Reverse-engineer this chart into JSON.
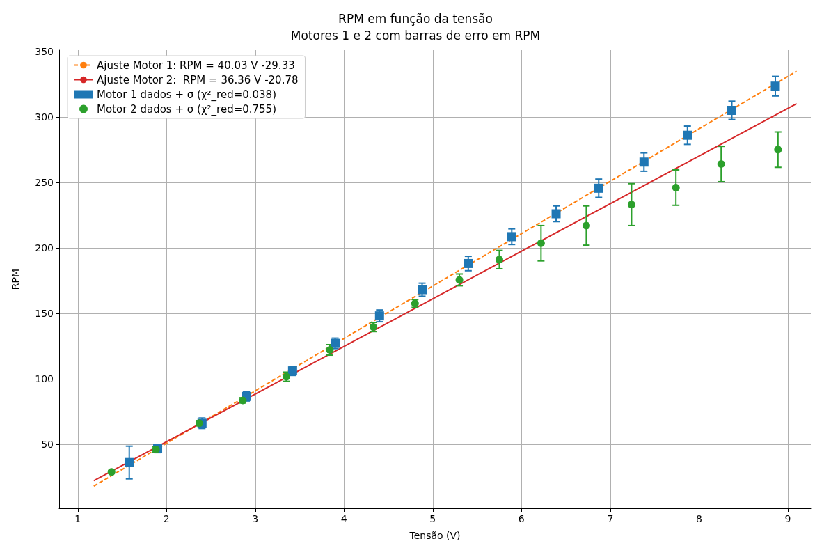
{
  "chart_data": {
    "type": "scatter",
    "title": "RPM em função da tensão",
    "subtitle": "Motores 1 e 2 com barras de erro em RPM",
    "xlabel": "Tensão (V)",
    "ylabel": "RPM",
    "xlim": [
      0.79,
      9.26
    ],
    "xticks": [
      1,
      2,
      3,
      4,
      5,
      6,
      7,
      8,
      9
    ],
    "ylim": [
      1,
      351
    ],
    "yticks": [
      50,
      100,
      150,
      200,
      250,
      300,
      350
    ],
    "grid": true,
    "legend": "top left",
    "series": [
      {
        "name": "Ajuste Motor 1: RPM = 40.03 V -29.33",
        "type": "line",
        "color": "#ff7f0e",
        "line_style": "dashed",
        "marker": "none",
        "x": [
          1.18,
          9.1
        ],
        "values": [
          17.9,
          334.9
        ]
      },
      {
        "name": "Ajuste Motor 2:  RPM = 36.36 V -20.78",
        "type": "line",
        "color": "#d62728",
        "line_style": "solid",
        "marker": "none",
        "x": [
          1.18,
          9.1
        ],
        "values": [
          22.1,
          310.1
        ]
      },
      {
        "name": "Motor 1 dados + σ (χ²_red=0.038)",
        "color": "#1f77b4",
        "marker": "square",
        "x": [
          1.58,
          1.9,
          2.4,
          2.9,
          3.42,
          3.9,
          4.4,
          4.88,
          5.4,
          5.89,
          6.39,
          6.87,
          7.38,
          7.87,
          8.37,
          8.86
        ],
        "values": [
          36,
          46.5,
          66,
          86.5,
          106,
          127,
          148,
          168,
          188,
          208.5,
          226,
          245.5,
          265.5,
          286,
          305,
          323.5
        ],
        "errors": [
          12.5,
          3,
          4,
          3.5,
          3.5,
          4,
          4.5,
          5,
          5.5,
          6,
          6,
          7,
          7,
          7,
          7,
          7.5
        ]
      },
      {
        "name": "Motor 2 dados + σ (χ²_red=0.755)",
        "color": "#2ca02c",
        "marker": "circle",
        "x": [
          1.38,
          1.88,
          2.37,
          2.86,
          3.35,
          3.84,
          4.33,
          4.8,
          5.3,
          5.75,
          6.22,
          6.73,
          7.24,
          7.74,
          8.25,
          8.89
        ],
        "values": [
          28.8,
          46,
          66,
          83.5,
          101.5,
          122,
          139.5,
          157.5,
          175.5,
          191,
          203.5,
          217,
          233,
          246,
          264,
          275
        ],
        "errors": [
          1,
          2,
          2,
          2,
          3.5,
          4,
          3.5,
          3,
          4.5,
          7,
          13.5,
          15,
          16,
          13.5,
          13.5,
          13.5
        ]
      }
    ]
  }
}
